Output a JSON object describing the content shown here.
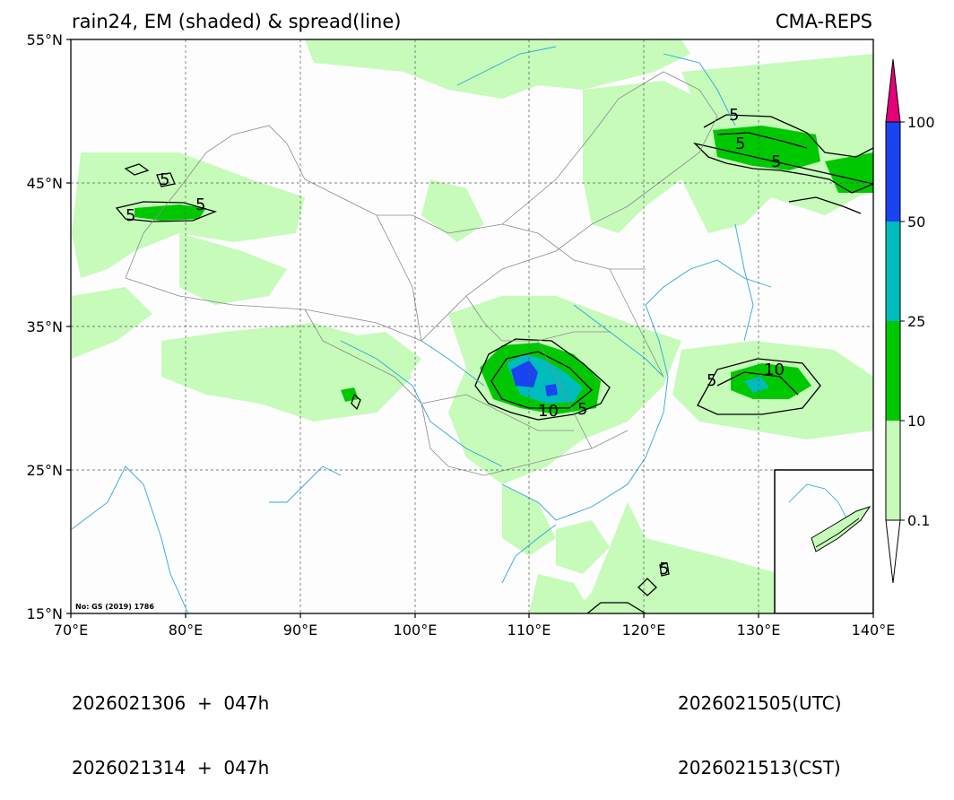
{
  "title": {
    "left": "rain24, EM (shaded) & spread(line)",
    "right": "CMA-REPS"
  },
  "map": {
    "lat_ticks": [
      "55°N",
      "45°N",
      "35°N",
      "25°N",
      "15°N"
    ],
    "lon_ticks": [
      "70°E",
      "80°E",
      "90°E",
      "100°E",
      "110°E",
      "120°E",
      "130°E",
      "140°E"
    ],
    "lat_range": [
      15,
      55
    ],
    "lon_range": [
      70,
      140
    ],
    "note": "No: GS (2019) 1786",
    "contour_labels": [
      "5",
      "5",
      "5",
      "5",
      "5",
      "5",
      "5",
      "5",
      "10",
      "10",
      "5"
    ],
    "inset": "South China Sea inset"
  },
  "colorbar": {
    "levels": [
      "0.1",
      "10",
      "25",
      "50",
      "100"
    ],
    "colors": [
      "#ffffff",
      "#c6fbba",
      "#00c800",
      "#00bcbc",
      "#1a44f0",
      "#e6007a"
    ]
  },
  "footer": {
    "left_line1": "2026021306  +  047h",
    "left_line2": "2026021314  +  047h",
    "right_line1": "2026021505(UTC)",
    "right_line2": "2026021513(CST)"
  }
}
